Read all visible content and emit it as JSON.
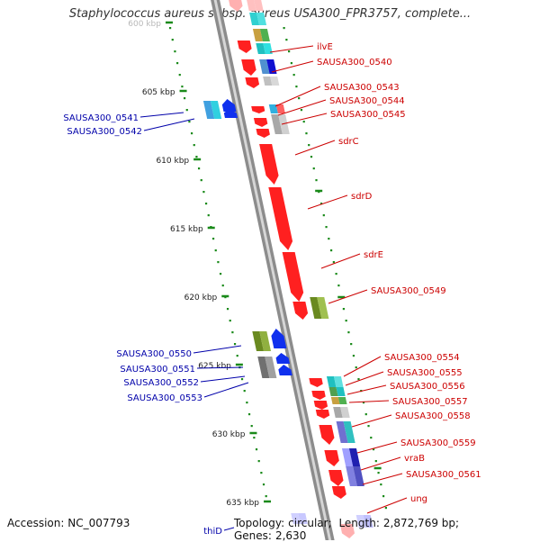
{
  "title": "Staphylococcus aureus subsp. aureus USA300_FPR3757, complete...",
  "accession_label": "Accession:",
  "accession": "NC_007793",
  "topology_label": "Topology:",
  "topology": "circular;",
  "length_label": "Length:",
  "length": "2,872,769 bp;",
  "genes_label": "Genes:",
  "genes": "2,630",
  "colors": {
    "forward": "#ff2020",
    "reverse": "#1030ee",
    "forward_label": "#cc0000",
    "reverse_label": "#0000aa",
    "backbone": "#8c8c8c",
    "scale": "#1a8a1a"
  },
  "scale_ticks": [
    {
      "kbp": 600,
      "label": "600 kbp"
    },
    {
      "kbp": 605,
      "label": "605 kbp"
    },
    {
      "kbp": 610,
      "label": "610 kbp"
    },
    {
      "kbp": 615,
      "label": "615 kbp"
    },
    {
      "kbp": 620,
      "label": "620 kbp"
    },
    {
      "kbp": 625,
      "label": "625 kbp"
    },
    {
      "kbp": 630,
      "label": "630 kbp"
    },
    {
      "kbp": 635,
      "label": "635 kbp"
    }
  ],
  "forward_labels": [
    "ilvE",
    "SAUSA300_0540",
    "SAUSA300_0543",
    "SAUSA300_0544",
    "SAUSA300_0545",
    "sdrC",
    "sdrD",
    "sdrE",
    "SAUSA300_0549",
    "SAUSA300_0554",
    "SAUSA300_0555",
    "SAUSA300_0556",
    "SAUSA300_0557",
    "SAUSA300_0558",
    "SAUSA300_0559",
    "vraB",
    "SAUSA300_0561",
    "ung"
  ],
  "reverse_labels": [
    "SAUSA300_0541",
    "SAUSA300_0542",
    "SAUSA300_0550",
    "SAUSA300_0551",
    "SAUSA300_0552",
    "SAUSA300_0553",
    "thiD"
  ]
}
